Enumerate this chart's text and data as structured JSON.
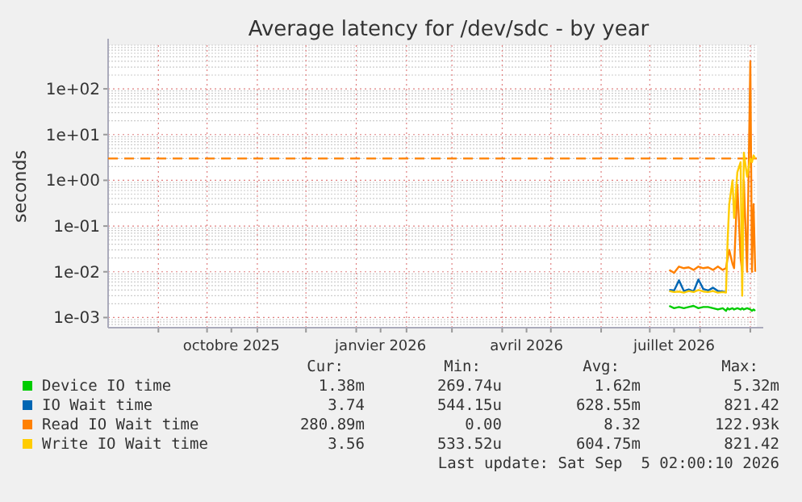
{
  "chart_data": {
    "type": "line",
    "title": "Average latency for /dev/sdc - by year",
    "ylabel": "seconds",
    "log": "y",
    "grid": true,
    "legend": "bottom",
    "line_style": "solid",
    "marker": "none",
    "x": [
      "2026-07-13",
      "2026-07-16",
      "2026-07-19",
      "2026-07-22",
      "2026-07-25",
      "2026-07-28",
      "2026-07-31",
      "2026-08-03",
      "2026-08-06",
      "2026-08-09",
      "2026-08-12",
      "2026-08-15",
      "2026-08-17",
      "2026-08-18",
      "2026-08-19",
      "2026-08-21",
      "2026-08-22",
      "2026-08-24",
      "2026-08-26",
      "2026-08-27",
      "2026-08-28",
      "2026-08-30",
      "2026-09-01",
      "2026-09-02",
      "2026-09-03",
      "2026-09-04"
    ],
    "xlim": [
      "2025-08-01",
      "2026-09-05"
    ],
    "xticks": [
      {
        "value": "2025-09-01",
        "label": null
      },
      {
        "value": "2025-10-01",
        "label": null
      },
      {
        "value": "2025-10-16",
        "label": "octobre 2025"
      },
      {
        "value": "2025-11-01",
        "label": null
      },
      {
        "value": "2025-12-01",
        "label": null
      },
      {
        "value": "2026-01-01",
        "label": null
      },
      {
        "value": "2026-01-16",
        "label": "janvier 2026"
      },
      {
        "value": "2026-02-01",
        "label": null
      },
      {
        "value": "2026-03-01",
        "label": null
      },
      {
        "value": "2026-04-01",
        "label": null
      },
      {
        "value": "2026-04-16",
        "label": "avril 2026"
      },
      {
        "value": "2026-05-01",
        "label": null
      },
      {
        "value": "2026-06-01",
        "label": null
      },
      {
        "value": "2026-07-01",
        "label": null
      },
      {
        "value": "2026-07-16",
        "label": "juillet 2026"
      },
      {
        "value": "2026-08-01",
        "label": null
      },
      {
        "value": "2026-09-01",
        "label": null
      }
    ],
    "ylim": [
      0.0006,
      900
    ],
    "yticks": [
      {
        "value": 0.001,
        "label": "1e-03"
      },
      {
        "value": 0.01,
        "label": "1e-02"
      },
      {
        "value": 0.1,
        "label": "1e-01"
      },
      {
        "value": 1,
        "label": "1e+00"
      },
      {
        "value": 10,
        "label": "1e+01"
      },
      {
        "value": 100,
        "label": "1e+02"
      }
    ],
    "ref_lines": [
      {
        "axis": "y",
        "value": 3,
        "color": "#ff8000",
        "line_style": "dashed"
      }
    ],
    "series": [
      {
        "name": "Device IO time",
        "color": "#00cc00",
        "values": [
          0.0018,
          0.0016,
          0.0017,
          0.0016,
          0.0017,
          0.0018,
          0.0016,
          0.0017,
          0.0017,
          0.0016,
          0.0015,
          0.0016,
          0.0014,
          0.0016,
          0.0015,
          0.0016,
          0.0015,
          0.0016,
          0.0015,
          0.0016,
          0.0015,
          0.0016,
          0.0015,
          0.0014,
          0.0015,
          0.0014
        ]
      },
      {
        "name": "IO Wait time",
        "color": "#0066b3",
        "values": [
          0.004,
          0.0039,
          0.0065,
          0.0038,
          0.0041,
          0.0037,
          0.0068,
          0.0042,
          0.0039,
          0.0045,
          0.0038,
          0.0037,
          0.0036,
          null,
          null,
          null,
          null,
          null,
          null,
          null,
          null,
          null,
          null,
          null,
          null,
          null
        ]
      },
      {
        "name": "Read IO Wait time",
        "color": "#ff8000",
        "values": [
          0.011,
          0.0095,
          0.013,
          0.012,
          0.0125,
          0.011,
          0.013,
          0.012,
          0.0125,
          0.011,
          0.013,
          0.011,
          0.012,
          0.02,
          0.03,
          0.015,
          0.012,
          0.8,
          0.02,
          0.01,
          1,
          0.01,
          400,
          0.01,
          0.3,
          0.01
        ]
      },
      {
        "name": "Write IO Wait time",
        "color": "#ffcc00",
        "values": [
          0.0038,
          0.0036,
          0.0037,
          0.0035,
          0.0038,
          0.0036,
          0.004,
          0.0037,
          0.0036,
          0.0038,
          0.0035,
          0.0036,
          0.0035,
          0.05,
          0.3,
          1,
          0.15,
          1.5,
          2.5,
          0.003,
          4,
          1.2,
          3,
          2.5,
          3.5,
          3
        ]
      }
    ],
    "annotations": [
      "Cur:",
      "Min:",
      "Avg:",
      "Max:",
      "1.38m",
      "269.74u",
      "1.62m",
      "5.32m",
      "3.74",
      "544.15u",
      "628.55m",
      "821.42",
      "280.89m",
      "0.00",
      "8.32",
      "122.93k",
      "3.56",
      "533.52u",
      "604.75m",
      "821.42",
      "Last update: Sat Sep  5 02:00:10 2026"
    ]
  }
}
